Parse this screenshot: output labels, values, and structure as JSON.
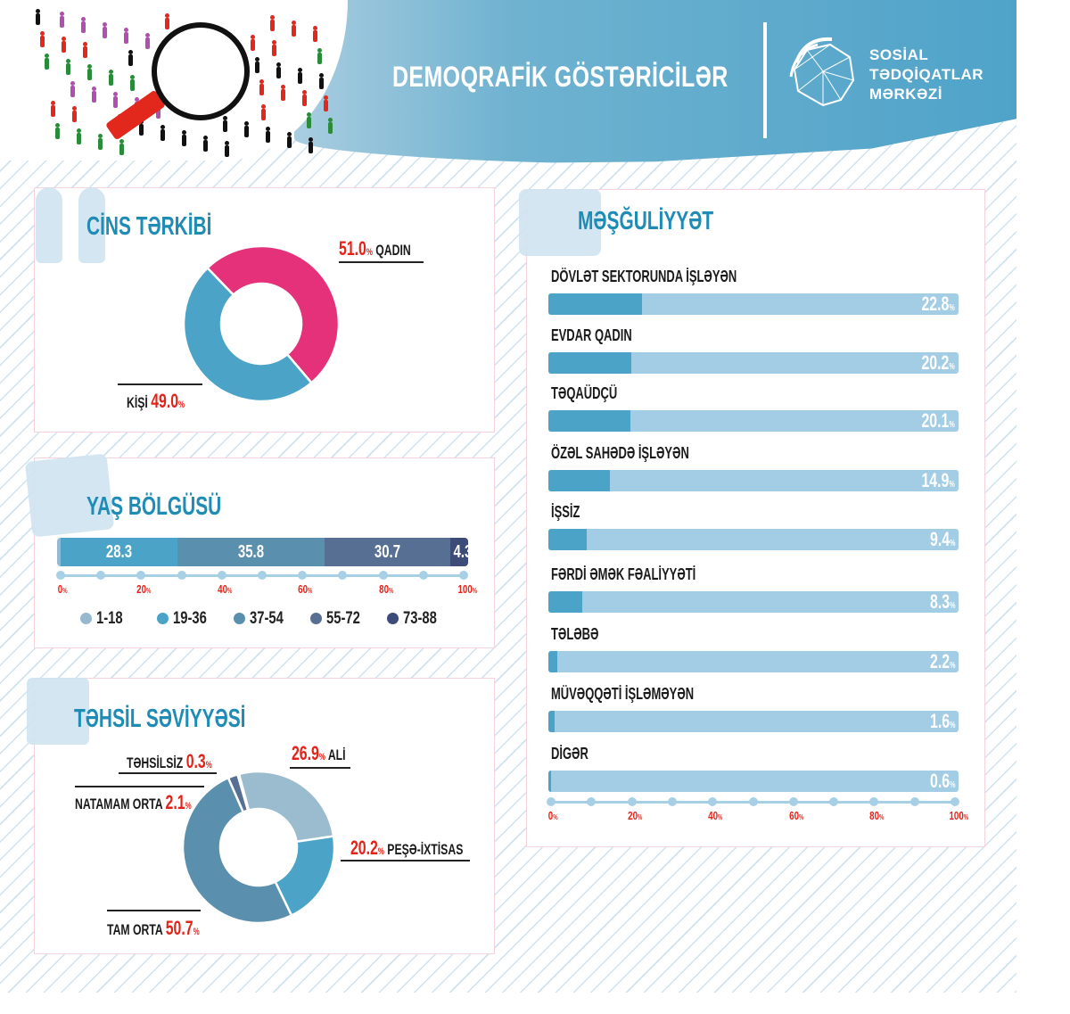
{
  "header": {
    "title": "DEMOQRAFİK GÖSTƏRİCİLƏR",
    "logo_lines": [
      "SOSİAL",
      "TƏDQİQATLAR",
      "MƏRKƏZİ"
    ]
  },
  "colors": {
    "accent": "#1f8cb6",
    "red": "#e2231a",
    "pink": "#e5307a",
    "blue": "#4ba4c8"
  },
  "gender": {
    "title": "CİNS TƏRKİBİ"
  },
  "age": {
    "title": "YAŞ BÖLGÜSÜ"
  },
  "education": {
    "title": "TƏHSİL SƏVİYYƏSİ"
  },
  "employment": {
    "title": "MƏŞĞULİYYƏT"
  },
  "chart_data": [
    {
      "type": "pie",
      "title": "CİNS TƏRKİBİ",
      "unit": "%",
      "slices": [
        {
          "label": "QADIN",
          "value": 51.0,
          "value_text": "51.0",
          "color": "#e5307a"
        },
        {
          "label": "KİŞİ",
          "value": 49.0,
          "value_text": "49.0",
          "color": "#4ba4c8"
        }
      ]
    },
    {
      "type": "bar",
      "stacked": true,
      "title": "YAŞ BÖLGÜSÜ",
      "unit": "%",
      "xlim": [
        0,
        100
      ],
      "ticks": [
        "0",
        "20",
        "40",
        "60",
        "80",
        "100"
      ],
      "series": [
        {
          "name": "1-18",
          "value": 0.9,
          "value_text": "0.9",
          "color": "#97b9cf"
        },
        {
          "name": "19-36",
          "value": 28.3,
          "value_text": "28.3",
          "color": "#4ba4c8"
        },
        {
          "name": "37-54",
          "value": 35.8,
          "value_text": "35.8",
          "color": "#5b8fae"
        },
        {
          "name": "55-72",
          "value": 30.7,
          "value_text": "30.7",
          "color": "#566f92"
        },
        {
          "name": "73-88",
          "value": 4.3,
          "value_text": "4.3",
          "color": "#3c4b78"
        }
      ]
    },
    {
      "type": "pie",
      "title": "TƏHSİL SƏVİYYƏSİ",
      "unit": "%",
      "slices": [
        {
          "label": "ALİ",
          "value": 26.9,
          "value_text": "26.9",
          "color": "#9bbccf"
        },
        {
          "label": "PEŞƏ-İXTİSAS",
          "value": 20.2,
          "value_text": "20.2",
          "color": "#4ba4c8"
        },
        {
          "label": "TAM ORTA",
          "value": 50.7,
          "value_text": "50.7",
          "color": "#5b8fae"
        },
        {
          "label": "NATAMAM ORTA",
          "value": 2.1,
          "value_text": "2.1",
          "color": "#566f92"
        },
        {
          "label": "TƏHSİLSİZ",
          "value": 0.3,
          "value_text": "0.3",
          "color": "#2f3f6e"
        }
      ]
    },
    {
      "type": "bar",
      "orientation": "horizontal",
      "title": "MƏŞĞULİYYƏT",
      "unit": "%",
      "xlim": [
        0,
        100
      ],
      "ticks": [
        "0",
        "20",
        "40",
        "60",
        "80",
        "100"
      ],
      "categories": [
        "DÖVLƏT SEKTORUNDA İŞLƏYƏN",
        "EVDAR QADIN",
        "TƏQAÜDÇÜ",
        "ÖZƏL SAHƏDƏ İŞLƏYƏN",
        "İŞSİZ",
        "FƏRDİ ƏMƏK FƏALİYYƏTİ",
        "TƏLƏBƏ",
        "MÜVƏQQƏTİ İŞLƏMƏYƏN",
        "DİGƏR"
      ],
      "values": [
        22.8,
        20.2,
        20.1,
        14.9,
        9.4,
        8.3,
        2.2,
        1.6,
        0.6
      ],
      "value_texts": [
        "22.8",
        "20.2",
        "20.1",
        "14.9",
        "9.4",
        "8.3",
        "2.2",
        "1.6",
        "0.6"
      ]
    }
  ]
}
